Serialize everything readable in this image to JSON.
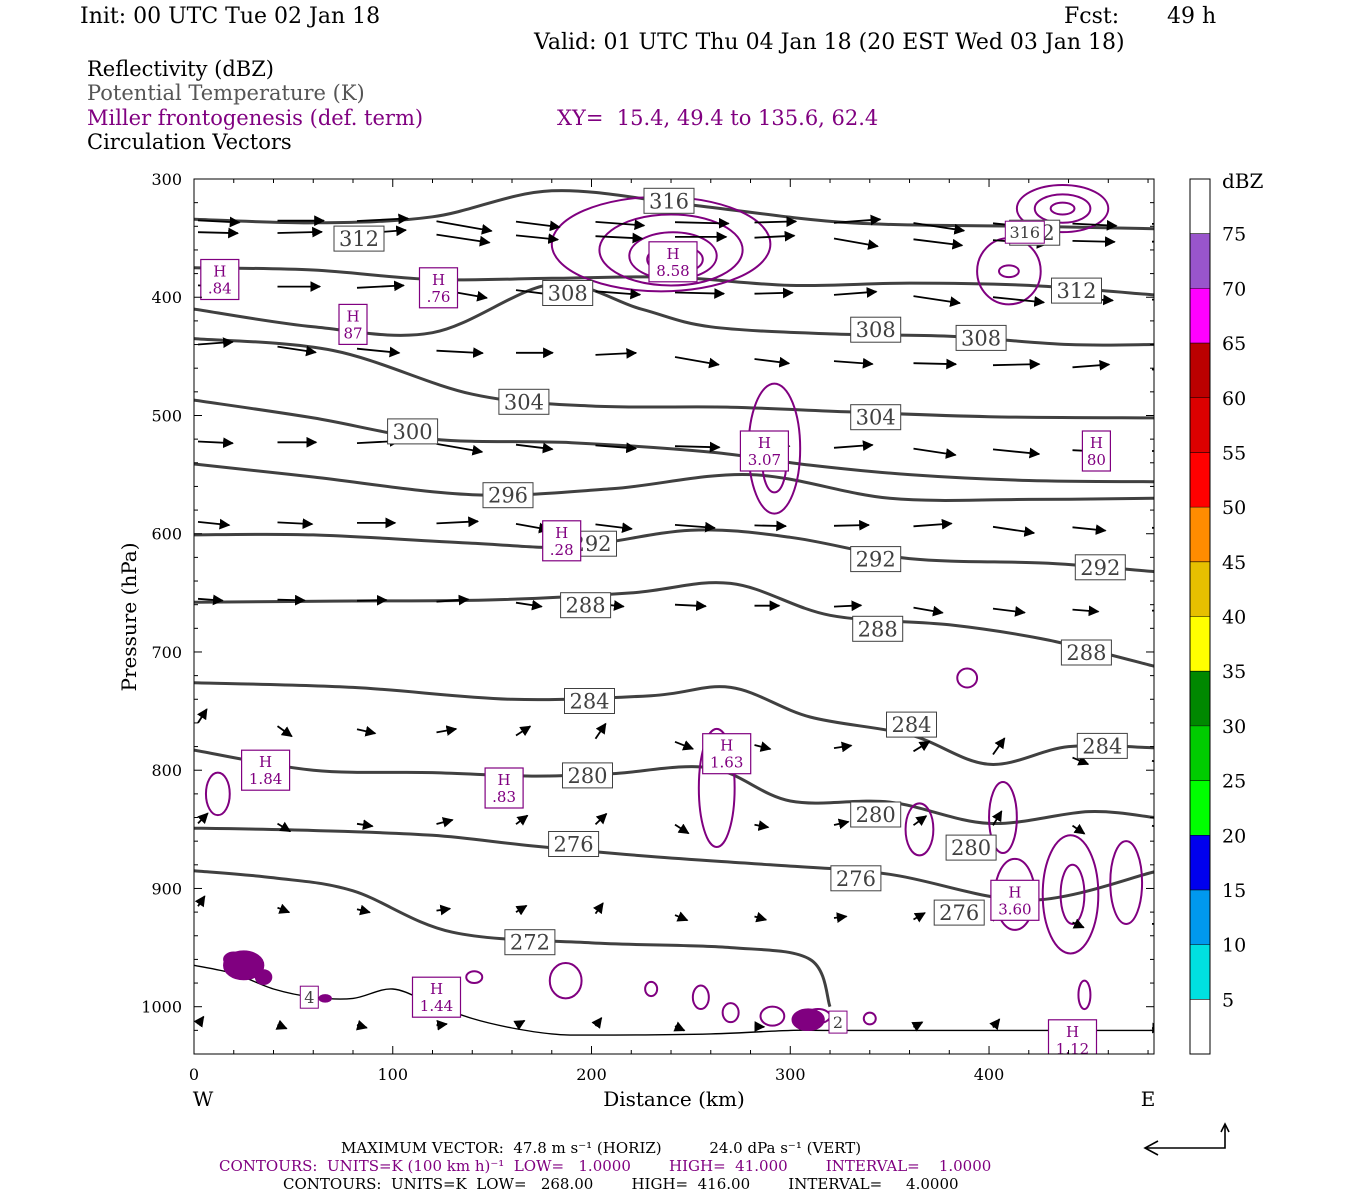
{
  "header": {
    "init": "Init: 00 UTC Tue 02 Jan 18",
    "fcst_label": "Fcst:",
    "fcst_value": "49 h",
    "valid": "Valid: 01 UTC Thu 04 Jan 18 (20 EST Wed 03 Jan 18)"
  },
  "fields": {
    "reflectivity": "Reflectivity (dBZ)",
    "theta": "Potential Temperature (K)",
    "frontogenesis": "Miller frontogenesis (def. term)",
    "xy": "XY=  15.4, 49.4 to 135.6, 62.4",
    "vectors": "Circulation Vectors"
  },
  "footer": {
    "max_vector": "MAXIMUM VECTOR:  47.8 m s⁻¹ (HORIZ)          24.0 dPa s⁻¹ (VERT)",
    "contours_fronto": "CONTOURS:  UNITS=K (100 km h)⁻¹  LOW=   1.0000        HIGH=  41.000        INTERVAL=    1.0000",
    "contours_theta": "CONTOURS:  UNITS=K  LOW=   268.00        HIGH=  416.00        INTERVAL=     4.0000"
  },
  "chart_data": {
    "type": "cross-section",
    "xlabel": "Distance (km)",
    "ylabel": "Pressure (hPa)",
    "xlim": [
      0,
      483
    ],
    "ylim": [
      300,
      1040
    ],
    "x_ticks": [
      0,
      100,
      200,
      300,
      400
    ],
    "y_ticks": [
      300,
      400,
      500,
      600,
      700,
      800,
      900,
      1000
    ],
    "left_end_label": "W",
    "right_end_label": "E",
    "colorbar": {
      "title": "dBZ",
      "labels": [
        "5",
        "10",
        "15",
        "20",
        "25",
        "30",
        "35",
        "40",
        "45",
        "50",
        "55",
        "60",
        "65",
        "70",
        "75"
      ],
      "colors": [
        "#ffffff",
        "#00e0e0",
        "#0099ee",
        "#0000ee",
        "#00ff00",
        "#00cc00",
        "#008800",
        "#ffff00",
        "#e6c000",
        "#ff8c00",
        "#ff0000",
        "#dd0000",
        "#bb0000",
        "#ff00ff",
        "#9955cc",
        "#ffffff"
      ]
    },
    "theta_contours": [
      {
        "value": 316,
        "label": "316",
        "points": [
          [
            0,
            334
          ],
          [
            60,
            337
          ],
          [
            120,
            332
          ],
          [
            180,
            310
          ],
          [
            250,
            322
          ],
          [
            330,
            337
          ],
          [
            420,
            340
          ],
          [
            483,
            342
          ]
        ],
        "labels": [
          [
            239,
            318
          ]
        ]
      },
      {
        "value": 312,
        "label": "312",
        "points": [
          [
            0,
            375
          ],
          [
            60,
            377
          ],
          [
            120,
            385
          ],
          [
            180,
            384
          ],
          [
            240,
            383
          ],
          [
            300,
            390
          ],
          [
            360,
            388
          ],
          [
            420,
            390
          ],
          [
            483,
            398
          ]
        ],
        "labels": [
          [
            83,
            350
          ],
          [
            423,
            345
          ],
          [
            444,
            394
          ]
        ]
      },
      {
        "value": 308,
        "label": "308",
        "points": [
          [
            0,
            410
          ],
          [
            60,
            425
          ],
          [
            120,
            430
          ],
          [
            180,
            389
          ],
          [
            225,
            410
          ],
          [
            260,
            425
          ],
          [
            320,
            431
          ],
          [
            380,
            433
          ],
          [
            440,
            440
          ],
          [
            483,
            440
          ]
        ],
        "labels": [
          [
            188,
            396
          ],
          [
            343,
            427
          ],
          [
            396,
            434
          ]
        ]
      },
      {
        "value": 304,
        "label": "304",
        "points": [
          [
            0,
            435
          ],
          [
            70,
            445
          ],
          [
            140,
            482
          ],
          [
            200,
            492
          ],
          [
            270,
            493
          ],
          [
            330,
            497
          ],
          [
            400,
            501
          ],
          [
            483,
            502
          ]
        ],
        "labels": [
          [
            166,
            488
          ],
          [
            343,
            501
          ]
        ]
      },
      {
        "value": 300,
        "label": "300",
        "points": [
          [
            0,
            487
          ],
          [
            60,
            502
          ],
          [
            120,
            520
          ],
          [
            190,
            523
          ],
          [
            260,
            531
          ],
          [
            310,
            542
          ],
          [
            360,
            550
          ],
          [
            420,
            555
          ],
          [
            483,
            556
          ]
        ],
        "labels": [
          [
            110,
            513
          ]
        ]
      },
      {
        "value": 296,
        "label": "296",
        "points": [
          [
            0,
            541
          ],
          [
            60,
            552
          ],
          [
            140,
            567
          ],
          [
            210,
            562
          ],
          [
            280,
            550
          ],
          [
            350,
            570
          ],
          [
            420,
            571
          ],
          [
            483,
            570
          ]
        ],
        "labels": [
          [
            158,
            567
          ]
        ]
      },
      {
        "value": 292,
        "label": "292",
        "points": [
          [
            0,
            601
          ],
          [
            60,
            601
          ],
          [
            140,
            608
          ],
          [
            190,
            611
          ],
          [
            250,
            597
          ],
          [
            300,
            603
          ],
          [
            360,
            621
          ],
          [
            430,
            625
          ],
          [
            483,
            632
          ]
        ],
        "labels": [
          [
            200,
            608
          ],
          [
            343,
            621
          ],
          [
            456,
            628
          ]
        ]
      },
      {
        "value": 288,
        "label": "288",
        "points": [
          [
            0,
            658
          ],
          [
            70,
            657
          ],
          [
            150,
            656
          ],
          [
            220,
            650
          ],
          [
            270,
            642
          ],
          [
            320,
            669
          ],
          [
            380,
            677
          ],
          [
            430,
            690
          ],
          [
            483,
            712
          ]
        ],
        "labels": [
          [
            197,
            660
          ],
          [
            344,
            680
          ],
          [
            449,
            700
          ]
        ]
      },
      {
        "value": 284,
        "label": "284",
        "points": [
          [
            0,
            726
          ],
          [
            80,
            730
          ],
          [
            160,
            740
          ],
          [
            230,
            737
          ],
          [
            270,
            730
          ],
          [
            310,
            755
          ],
          [
            360,
            770
          ],
          [
            400,
            795
          ],
          [
            440,
            780
          ],
          [
            483,
            781
          ]
        ],
        "labels": [
          [
            199,
            741
          ],
          [
            361,
            761
          ],
          [
            457,
            779
          ]
        ]
      },
      {
        "value": 280,
        "label": "280",
        "points": [
          [
            0,
            783
          ],
          [
            60,
            800
          ],
          [
            120,
            802
          ],
          [
            170,
            805
          ],
          [
            210,
            803
          ],
          [
            260,
            798
          ],
          [
            300,
            826
          ],
          [
            350,
            827
          ],
          [
            400,
            845
          ],
          [
            450,
            835
          ],
          [
            483,
            840
          ]
        ],
        "labels": [
          [
            198,
            804
          ],
          [
            343,
            837
          ],
          [
            391,
            865
          ]
        ]
      },
      {
        "value": 276,
        "label": "276",
        "points": [
          [
            0,
            849
          ],
          [
            60,
            851
          ],
          [
            120,
            855
          ],
          [
            170,
            864
          ],
          [
            230,
            873
          ],
          [
            290,
            880
          ],
          [
            350,
            888
          ],
          [
            420,
            910
          ],
          [
            483,
            886
          ]
        ],
        "labels": [
          [
            191,
            862
          ],
          [
            333,
            891
          ],
          [
            385,
            920
          ]
        ]
      },
      {
        "value": 272,
        "label": "272",
        "points": [
          [
            0,
            885
          ],
          [
            40,
            891
          ],
          [
            80,
            902
          ],
          [
            130,
            937
          ],
          [
            200,
            946
          ],
          [
            270,
            950
          ],
          [
            310,
            960
          ],
          [
            320,
            1000
          ]
        ],
        "labels": [
          [
            169,
            945
          ]
        ]
      }
    ],
    "terrain": [
      [
        0,
        965
      ],
      [
        20,
        972
      ],
      [
        40,
        985
      ],
      [
        60,
        992
      ],
      [
        80,
        993
      ],
      [
        100,
        985
      ],
      [
        120,
        998
      ],
      [
        140,
        1010
      ],
      [
        160,
        1018
      ],
      [
        180,
        1023
      ],
      [
        200,
        1024
      ],
      [
        260,
        1023
      ],
      [
        300,
        1020
      ],
      [
        320,
        1020
      ],
      [
        400,
        1020
      ],
      [
        483,
        1020
      ]
    ],
    "fronto_max": [
      {
        "label": "H",
        "value": ".84",
        "x": 13,
        "p": 385
      },
      {
        "label": "H",
        "value": ".76",
        "x": 123,
        "p": 392
      },
      {
        "label": "H",
        "value": "87",
        "x": 80,
        "p": 423
      },
      {
        "label": "H",
        "value": "8.58",
        "x": 241,
        "p": 370
      },
      {
        "label": "H",
        "value": "3.07",
        "x": 287,
        "p": 530
      },
      {
        "label": "H",
        "value": "80",
        "x": 454,
        "p": 530
      },
      {
        "label": "H",
        "value": ".28",
        "x": 185,
        "p": 606
      },
      {
        "label": "H",
        "value": "1.84",
        "x": 36,
        "p": 800
      },
      {
        "label": "H",
        "value": ".83",
        "x": 156,
        "p": 815
      },
      {
        "label": "H",
        "value": "1.63",
        "x": 268,
        "p": 786
      },
      {
        "label": "H",
        "value": "3.60",
        "x": 413,
        "p": 910
      },
      {
        "label": "H",
        "value": "1.44",
        "x": 122,
        "p": 992
      },
      {
        "label": "H",
        "value": "1.12",
        "x": 442,
        "p": 1028
      }
    ],
    "fronto_partial_labels": [
      {
        "value": "4",
        "x": 58,
        "p": 992
      },
      {
        "value": "316",
        "x": 418,
        "p": 345
      },
      {
        "value": "2",
        "x": 324,
        "p": 1013
      }
    ],
    "fronto_contours": [
      {
        "cx": 235,
        "p": 355,
        "rx": 55,
        "rp": 40
      },
      {
        "cx": 240,
        "p": 360,
        "rx": 36,
        "rp": 30
      },
      {
        "cx": 241,
        "p": 365,
        "rx": 22,
        "rp": 20
      },
      {
        "cx": 242,
        "p": 368,
        "rx": 14,
        "rp": 12
      },
      {
        "cx": 437,
        "p": 325,
        "rx": 23,
        "rp": 20
      },
      {
        "cx": 437,
        "p": 325,
        "rx": 14,
        "rp": 12
      },
      {
        "cx": 437,
        "p": 325,
        "rx": 6,
        "rp": 5
      },
      {
        "cx": 410,
        "p": 378,
        "rx": 16,
        "rp": 28
      },
      {
        "cx": 410,
        "p": 378,
        "rx": 5,
        "rp": 5
      },
      {
        "cx": 292,
        "p": 528,
        "rx": 13,
        "rp": 55
      },
      {
        "cx": 292,
        "p": 540,
        "rx": 6,
        "rp": 25
      },
      {
        "cx": 263,
        "p": 815,
        "rx": 9,
        "rp": 50
      },
      {
        "cx": 12,
        "p": 820,
        "rx": 6,
        "rp": 18
      },
      {
        "cx": 389,
        "p": 722,
        "rx": 5,
        "rp": 8
      },
      {
        "cx": 365,
        "p": 850,
        "rx": 7,
        "rp": 22
      },
      {
        "cx": 407,
        "p": 840,
        "rx": 7,
        "rp": 30
      },
      {
        "cx": 413,
        "p": 905,
        "rx": 10,
        "rp": 30
      },
      {
        "cx": 441,
        "p": 905,
        "rx": 14,
        "rp": 50
      },
      {
        "cx": 442,
        "p": 905,
        "rx": 6,
        "rp": 25
      },
      {
        "cx": 469,
        "p": 895,
        "rx": 8,
        "rp": 35
      },
      {
        "cx": 187,
        "p": 978,
        "rx": 8,
        "rp": 15
      },
      {
        "cx": 141,
        "p": 975,
        "rx": 4,
        "rp": 5
      },
      {
        "cx": 230,
        "p": 985,
        "rx": 3,
        "rp": 6
      },
      {
        "cx": 255,
        "p": 992,
        "rx": 4,
        "rp": 10
      },
      {
        "cx": 270,
        "p": 1005,
        "rx": 4,
        "rp": 8
      },
      {
        "cx": 291,
        "p": 1008,
        "rx": 6,
        "rp": 8
      },
      {
        "cx": 314,
        "p": 1008,
        "rx": 6,
        "rp": 6
      },
      {
        "cx": 340,
        "p": 1010,
        "rx": 3,
        "rp": 5
      },
      {
        "cx": 448,
        "p": 990,
        "rx": 3,
        "rp": 12
      }
    ],
    "fronto_filled": [
      {
        "cx": 25,
        "p": 965,
        "rx": 10,
        "rp": 12
      },
      {
        "cx": 20,
        "p": 960,
        "rx": 5,
        "rp": 6
      },
      {
        "cx": 35,
        "p": 975,
        "rx": 4,
        "rp": 6
      },
      {
        "cx": 309,
        "p": 1011,
        "rx": 8,
        "rp": 9
      },
      {
        "cx": 66,
        "p": 993,
        "rx": 3,
        "rp": 3
      }
    ],
    "vector_rows": [
      {
        "p": 335,
        "y0": 330,
        "y1": 333,
        "c": 1.0
      },
      {
        "p": 345,
        "y0": 342,
        "y1": 350,
        "c": 0.95
      },
      {
        "p": 390,
        "y0": 390,
        "y1": 402,
        "c": 0.9
      },
      {
        "p": 440,
        "y0": 446,
        "y1": 467,
        "c": 0.8
      },
      {
        "p": 522,
        "y0": 522,
        "y1": 530,
        "c": 0.8
      },
      {
        "p": 590,
        "y0": 590,
        "y1": 595,
        "c": 0.7
      },
      {
        "p": 655,
        "y0": 655,
        "y1": 665,
        "c": 0.5
      },
      {
        "p": 760,
        "y0": 760,
        "y1": 792,
        "c": 0.25
      },
      {
        "p": 845,
        "y0": 845,
        "y1": 847,
        "c": 0.18
      },
      {
        "p": 915,
        "y0": 915,
        "y1": 930,
        "c": 0.12
      },
      {
        "p": 1015,
        "y0": 1015,
        "y1": 1018,
        "c": 0.05
      }
    ]
  }
}
